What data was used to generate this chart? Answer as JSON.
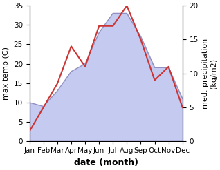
{
  "months": [
    "Jan",
    "Feb",
    "Mar",
    "Apr",
    "May",
    "Jun",
    "Jul",
    "Aug",
    "Sep",
    "Oct",
    "Nov",
    "Dec"
  ],
  "month_x": [
    0,
    1,
    2,
    3,
    4,
    5,
    6,
    7,
    8,
    9,
    10,
    11
  ],
  "max_temp": [
    10,
    9,
    13,
    18,
    20,
    28,
    33,
    33,
    27,
    19,
    19,
    11
  ],
  "precipitation_mm": [
    1.5,
    5,
    8.5,
    14,
    11,
    17,
    17,
    20,
    15,
    9,
    11,
    5
  ],
  "temp_ylim": [
    0,
    35
  ],
  "precip_ylim": [
    0,
    20
  ],
  "temp_line_color": "#9090c0",
  "temp_fill_color": "#c5caf0",
  "precip_color": "#cc3333",
  "xlabel": "date (month)",
  "ylabel_left": "max temp (C)",
  "ylabel_right": "med. precipitation\n(kg/m2)",
  "bg_color": "#ffffff",
  "label_fontsize": 8,
  "tick_fontsize": 7.5,
  "ylabel_fontsize": 8
}
